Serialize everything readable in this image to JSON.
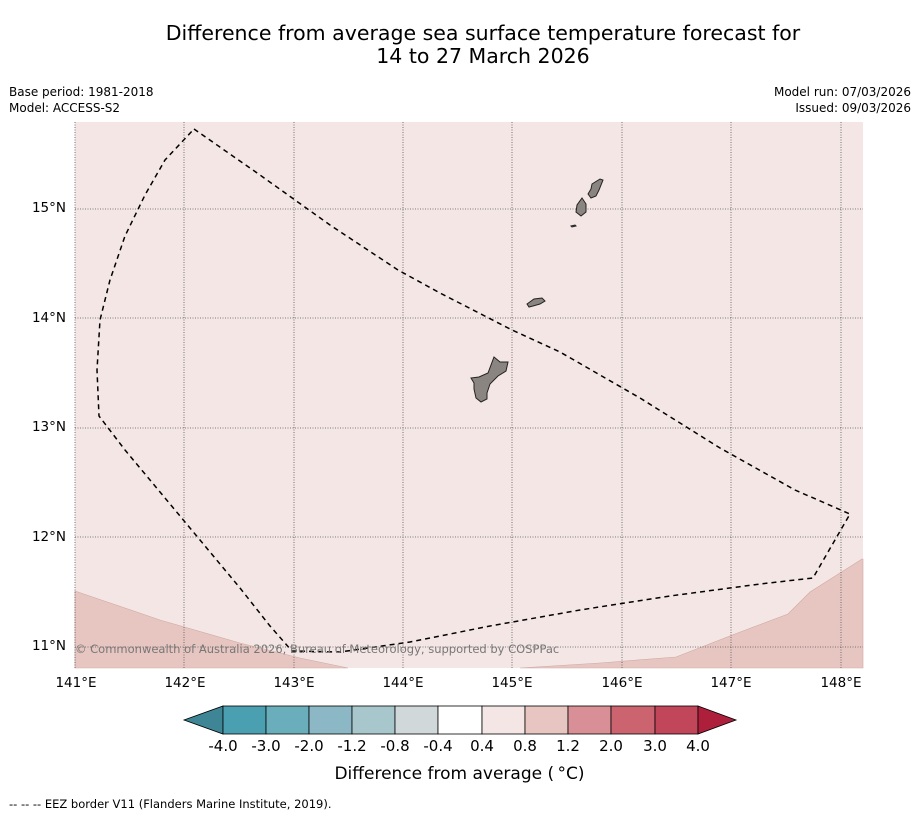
{
  "title": {
    "line1": "Difference from average sea surface temperature forecast for",
    "line2": "14 to 27 March 2026"
  },
  "meta_left": {
    "base_period": "Base period: 1981-2018",
    "model": "Model: ACCESS-S2"
  },
  "meta_right": {
    "model_run": "Model run: 07/03/2026",
    "issued": "Issued: 09/03/2026"
  },
  "map": {
    "lat_labels": [
      "15°N",
      "14°N",
      "13°N",
      "12°N",
      "11°N"
    ],
    "lon_labels": [
      "141°E",
      "142°E",
      "143°E",
      "144°E",
      "145°E",
      "146°E",
      "147°E",
      "148°E"
    ],
    "copyright": "© Commonwealth of Australia 2026, Bureau of Meteorology, supported by COSPPac",
    "background_color": "#f4e6e4",
    "warm_region_color": "#e7c6c1",
    "land_color": "#8b8582"
  },
  "colorbar": {
    "ticks": [
      "-4.0",
      "-3.0",
      "-2.0",
      "-1.2",
      "-0.8",
      "-0.4",
      "0.4",
      "0.8",
      "1.2",
      "2.0",
      "3.0",
      "4.0"
    ],
    "colors": [
      "#4a9fb1",
      "#6aaebc",
      "#8bb8c4",
      "#a8c7cc",
      "#d1d8da",
      "#ffffff",
      "#f4e6e4",
      "#e7c6c1",
      "#d98f96",
      "#cc6470",
      "#c1465a"
    ],
    "under_color": "#3e8595",
    "over_color": "#ae1f3c",
    "label": "Difference from average ( °C)"
  },
  "footer": {
    "legend": "--  --  -- EEZ border V11 (Flanders Marine Institute, 2019)."
  }
}
